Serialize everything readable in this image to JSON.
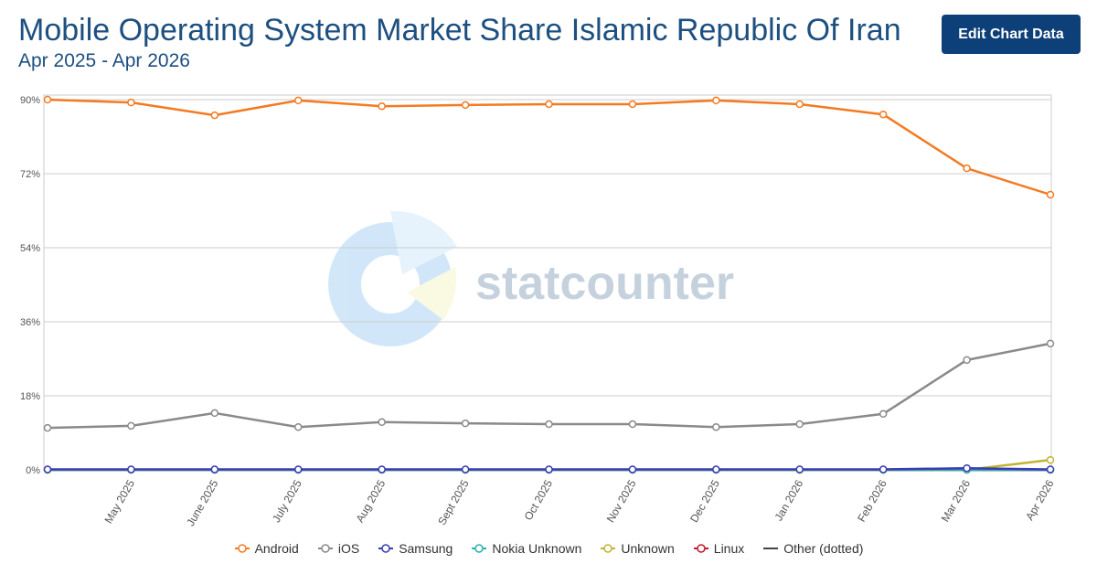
{
  "toolbar": {
    "button": "Edit Chart Data"
  },
  "chart_data": {
    "type": "line",
    "title": "Mobile Operating System Market Share Islamic Republic Of Iran",
    "subtitle": "Apr 2025 - Apr 2026",
    "watermark": "statcounter",
    "categories": [
      null,
      "May 2025",
      "June 2025",
      "July 2025",
      "Aug 2025",
      "Sept 2025",
      "Oct 2025",
      "Nov 2025",
      "Dec 2025",
      "Jan 2026",
      "Feb 2026",
      "Mar 2026",
      "Apr 2026"
    ],
    "series": [
      {
        "name": "Android",
        "color": "#f47a20",
        "values": [
          90.0,
          89.3,
          86.2,
          89.8,
          88.4,
          88.7,
          88.9,
          88.9,
          89.8,
          88.9,
          86.4,
          73.3,
          66.9
        ]
      },
      {
        "name": "iOS",
        "color": "#8a8a8a",
        "values": [
          10.2,
          10.7,
          13.8,
          10.4,
          11.6,
          11.3,
          11.1,
          11.1,
          10.4,
          11.1,
          13.6,
          26.7,
          30.7
        ]
      },
      {
        "name": "Samsung",
        "color": "#3b3bb3",
        "values": [
          0.1,
          0.1,
          0.1,
          0.1,
          0.1,
          0.1,
          0.1,
          0.1,
          0.1,
          0.1,
          0.1,
          0.4,
          0.1
        ]
      },
      {
        "name": "Nokia Unknown",
        "color": "#27b0b0",
        "values": [
          0,
          0,
          0,
          0,
          0,
          0,
          0,
          0,
          0,
          0,
          0,
          0,
          0
        ]
      },
      {
        "name": "Unknown",
        "color": "#c2b430",
        "values": [
          0,
          0,
          0,
          0,
          0,
          0,
          0,
          0,
          0,
          0,
          0,
          0,
          2.4
        ]
      },
      {
        "name": "Linux",
        "color": "#c0182e",
        "values": [
          0,
          0,
          0,
          0,
          0,
          0,
          0,
          0,
          0,
          0,
          0,
          0,
          0
        ]
      },
      {
        "name": "Other (dotted)",
        "color": "#444444",
        "markers": false,
        "values": [
          0,
          0,
          0,
          0,
          0,
          0,
          0,
          0,
          0,
          0,
          0,
          0,
          0
        ]
      }
    ],
    "ylim": [
      0,
      90
    ],
    "yticks": [
      {
        "value": 0,
        "label": "0%"
      },
      {
        "value": 18,
        "label": "18%"
      },
      {
        "value": 36,
        "label": "36%"
      },
      {
        "value": 54,
        "label": "54%"
      },
      {
        "value": 72,
        "label": "72%"
      },
      {
        "value": 90,
        "label": "90%"
      }
    ],
    "grid": true
  }
}
